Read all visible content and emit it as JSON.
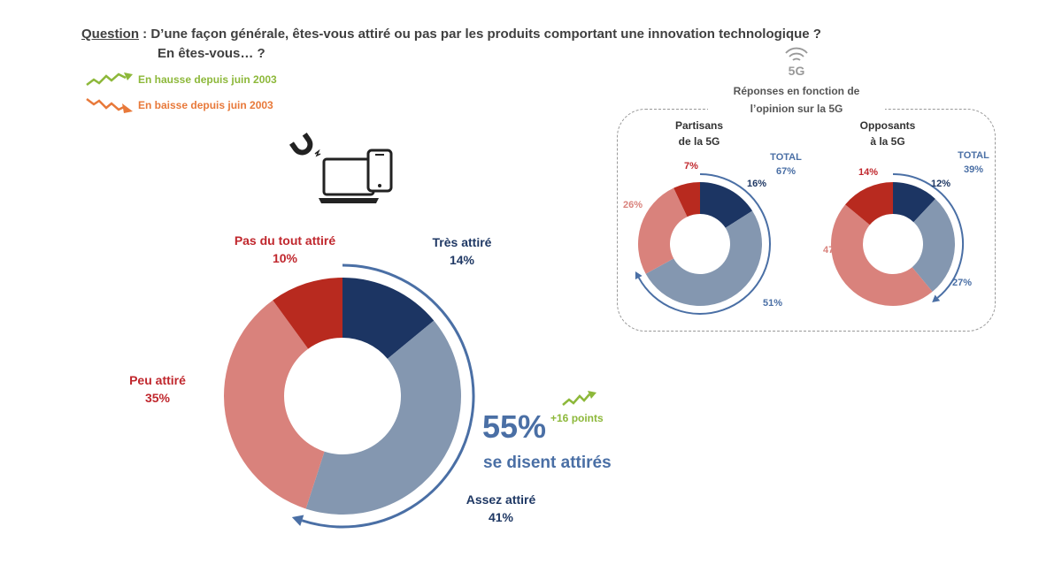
{
  "question": {
    "label": "Question",
    "text": " : D’une façon générale, êtes-vous attiré ou pas par les produits comportant une innovation technologique ?",
    "subtext": "En êtes-vous… ?"
  },
  "legend": {
    "up": "En hausse depuis juin 2003",
    "down": "En baisse depuis juin 2003"
  },
  "colors": {
    "tres": "#1c3563",
    "assez": "#8497b0",
    "peu": "#d9827c",
    "pas": "#b82a1f",
    "accent_blue": "#4a6fa5",
    "green": "#8db83a",
    "orange": "#e8793a",
    "red_label": "#c0272d",
    "pink_label": "#d9827c",
    "blue_label": "#1f3864"
  },
  "chart_data": [
    {
      "type": "pie",
      "title": "En êtes-vous… ?",
      "categories": [
        "Très attiré",
        "Assez attiré",
        "Peu attiré",
        "Pas du tout attiré"
      ],
      "values": [
        14,
        41,
        35,
        10
      ],
      "labels": [
        "14%",
        "41%",
        "35%",
        "10%"
      ],
      "summary_value": "55%",
      "summary_text": "se disent attirés",
      "summary_change": "+16 points"
    },
    {
      "type": "pie",
      "title": "Partisans de la 5G",
      "categories": [
        "Très attiré",
        "Assez attiré",
        "Peu attiré",
        "Pas du tout attiré"
      ],
      "values": [
        16,
        51,
        26,
        7
      ],
      "labels": [
        "16%",
        "51%",
        "26%",
        "7%"
      ],
      "total_label": "TOTAL",
      "total_value": "67%"
    },
    {
      "type": "pie",
      "title": "Opposants à la 5G",
      "categories": [
        "Très attiré",
        "Assez attiré",
        "Peu attiré",
        "Pas du tout attiré"
      ],
      "values": [
        12,
        27,
        47,
        14
      ],
      "labels": [
        "12%",
        "27%",
        "47%",
        "14%"
      ],
      "total_label": "TOTAL",
      "total_value": "39%"
    }
  ],
  "side_panel": {
    "badge": "5G",
    "title_line1": "Réponses en fonction de",
    "title_line2": "l’opinion sur la 5G",
    "partisans_line1": "Partisans",
    "partisans_line2": "de la 5G",
    "opposants_line1": "Opposants",
    "opposants_line2": "à la 5G"
  }
}
